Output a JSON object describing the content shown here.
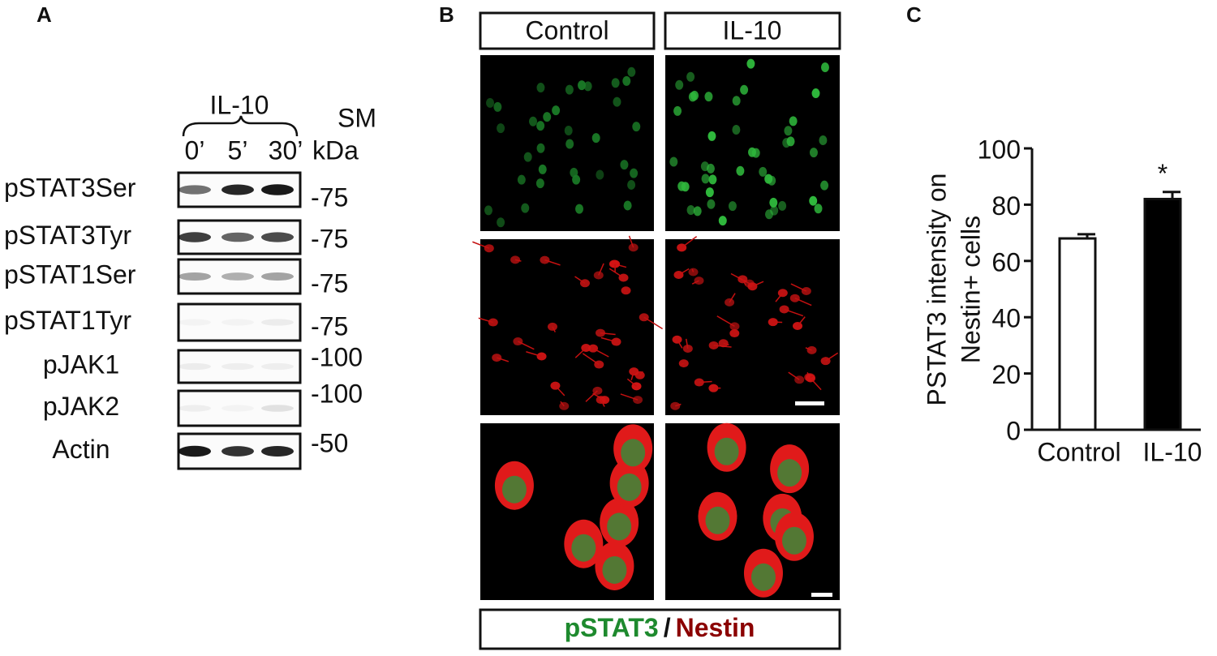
{
  "panels": {
    "a": {
      "label": "A",
      "group_label": "IL-10",
      "times": [
        "0’",
        "5’",
        "30’"
      ],
      "sm_label": "SM",
      "kda_label": "kDa",
      "rows": [
        {
          "name": "pSTAT3Ser",
          "marker": "-75"
        },
        {
          "name": "pSTAT3Tyr",
          "marker": "-75"
        },
        {
          "name": "pSTAT1Ser",
          "marker": "-75"
        },
        {
          "name": "pSTAT1Tyr",
          "marker": "-75"
        },
        {
          "name": "pJAK1",
          "marker": "-100"
        },
        {
          "name": "pJAK2",
          "marker": "-100"
        },
        {
          "name": "Actin",
          "marker": "-50"
        }
      ]
    },
    "b": {
      "label": "B",
      "columns": [
        "Control",
        "IL-10"
      ],
      "legend_green": "pSTAT3",
      "legend_sep": "/",
      "legend_red": "Nestin"
    },
    "c": {
      "label": "C"
    }
  },
  "chart_data": {
    "type": "bar",
    "y_label_lines": [
      "PSTAT3 intensity on",
      "Nestin+ cells"
    ],
    "categories": [
      "Control",
      "IL-10"
    ],
    "values": [
      68,
      82
    ],
    "errors": [
      1.5,
      2.5
    ],
    "colors": [
      "#ffffff",
      "#000000"
    ],
    "markers": [
      null,
      "*"
    ],
    "ylim": [
      0,
      100
    ],
    "yticks": [
      0,
      20,
      40,
      60,
      80,
      100
    ]
  }
}
